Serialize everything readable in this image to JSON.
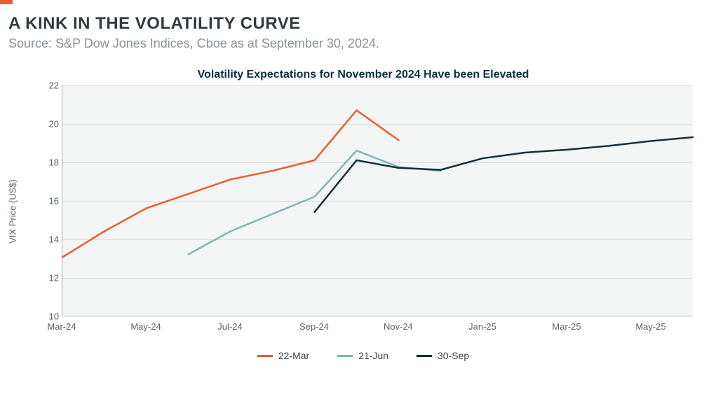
{
  "header": {
    "title": "A KINK IN THE VOLATILITY CURVE",
    "source": "Source: S&P Dow Jones Indices, Cboe as at September 30, 2024.",
    "accent_color": "#e85e2c"
  },
  "chart": {
    "type": "line",
    "title": "Volatility Expectations for November 2024 Have been Elevated",
    "title_color": "#0a3040",
    "title_fontsize": 16,
    "background_color": "#f4f5f5",
    "grid_color": "#d9dbdc",
    "axis_color": "#a8aeb3",
    "tick_color": "#5a6268",
    "tick_fontsize": 13,
    "y_label": "VIX Price (US$)",
    "y_label_fontsize": 13,
    "ylim": [
      10,
      22
    ],
    "y_ticks": [
      10,
      12,
      14,
      16,
      18,
      20,
      22
    ],
    "x_range_months": [
      "2024-03",
      "2025-06"
    ],
    "x_ticks": [
      {
        "month": "2024-03",
        "label": "Mar-24"
      },
      {
        "month": "2024-05",
        "label": "May-24"
      },
      {
        "month": "2024-07",
        "label": "Jul-24"
      },
      {
        "month": "2024-09",
        "label": "Sep-24"
      },
      {
        "month": "2024-11",
        "label": "Nov-24"
      },
      {
        "month": "2025-01",
        "label": "Jan-25"
      },
      {
        "month": "2025-03",
        "label": "Mar-25"
      },
      {
        "month": "2025-05",
        "label": "May-25"
      }
    ],
    "line_width": 2.5,
    "series": [
      {
        "name": "22-Mar",
        "color": "#e85e2c",
        "points": [
          {
            "month": "2024-03",
            "y": 13.05
          },
          {
            "month": "2024-04",
            "y": 14.4
          },
          {
            "month": "2024-05",
            "y": 15.6
          },
          {
            "month": "2024-06",
            "y": 16.35
          },
          {
            "month": "2024-07",
            "y": 17.1
          },
          {
            "month": "2024-08",
            "y": 17.55
          },
          {
            "month": "2024-09",
            "y": 18.1
          },
          {
            "month": "2024-10",
            "y": 20.7
          },
          {
            "month": "2024-11",
            "y": 19.15
          }
        ]
      },
      {
        "name": "21-Jun",
        "color": "#7fb5b5",
        "points": [
          {
            "month": "2024-06",
            "y": 13.2
          },
          {
            "month": "2024-07",
            "y": 14.4
          },
          {
            "month": "2024-08",
            "y": 15.3
          },
          {
            "month": "2024-09",
            "y": 16.2
          },
          {
            "month": "2024-10",
            "y": 18.6
          },
          {
            "month": "2024-11",
            "y": 17.75
          },
          {
            "month": "2024-12",
            "y": 17.55
          }
        ]
      },
      {
        "name": "30-Sep",
        "color": "#11303a",
        "points": [
          {
            "month": "2024-09",
            "y": 15.4
          },
          {
            "month": "2024-10",
            "y": 18.1
          },
          {
            "month": "2024-11",
            "y": 17.7
          },
          {
            "month": "2024-12",
            "y": 17.6
          },
          {
            "month": "2025-01",
            "y": 18.2
          },
          {
            "month": "2025-02",
            "y": 18.5
          },
          {
            "month": "2025-03",
            "y": 18.65
          },
          {
            "month": "2025-04",
            "y": 18.85
          },
          {
            "month": "2025-05",
            "y": 19.1
          },
          {
            "month": "2025-06",
            "y": 19.3
          }
        ]
      }
    ],
    "legend": {
      "position": "bottom-center",
      "fontsize": 14,
      "color": "#3a4248"
    }
  }
}
